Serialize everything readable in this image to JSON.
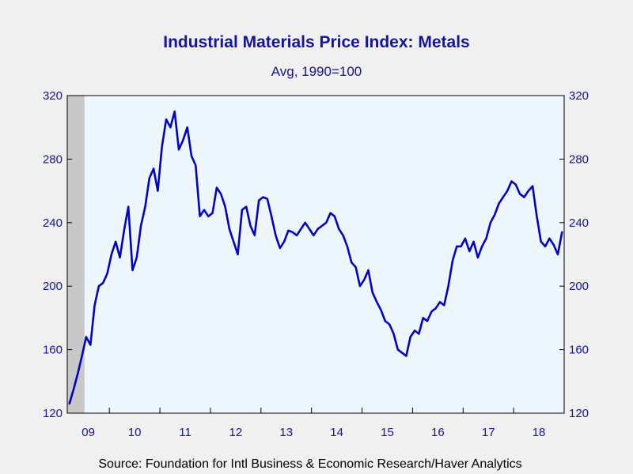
{
  "chart_data": {
    "type": "line",
    "title": "Industrial Materials Price Index: Metals",
    "subtitle": "Avg, 1990=100",
    "source": "Source:  Foundation for Intl Business & Economic Research/Haver Analytics",
    "ylim": [
      120,
      320
    ],
    "yticks": [
      120,
      160,
      200,
      240,
      280,
      320
    ],
    "x_range": [
      "2009-03",
      "2018-12"
    ],
    "x_tick_labels": [
      "09",
      "10",
      "11",
      "12",
      "13",
      "14",
      "15",
      "16",
      "17",
      "18"
    ],
    "recession_shading": {
      "start": "2009-03",
      "end": "2009-06"
    },
    "grid": false,
    "series": [
      {
        "color": "#0000c8",
        "points": [
          [
            "2009-03",
            126
          ],
          [
            "2009-04",
            135
          ],
          [
            "2009-05",
            145
          ],
          [
            "2009-06",
            156
          ],
          [
            "2009-07",
            168
          ],
          [
            "2009-08",
            163
          ],
          [
            "2009-09",
            188
          ],
          [
            "2009-10",
            200
          ],
          [
            "2009-11",
            202
          ],
          [
            "2009-12",
            208
          ],
          [
            "2010-01",
            220
          ],
          [
            "2010-02",
            228
          ],
          [
            "2010-03",
            218
          ],
          [
            "2010-04",
            235
          ],
          [
            "2010-05",
            250
          ],
          [
            "2010-06",
            210
          ],
          [
            "2010-07",
            218
          ],
          [
            "2010-08",
            238
          ],
          [
            "2010-09",
            250
          ],
          [
            "2010-10",
            268
          ],
          [
            "2010-11",
            274
          ],
          [
            "2010-12",
            260
          ],
          [
            "2011-01",
            288
          ],
          [
            "2011-02",
            305
          ],
          [
            "2011-03",
            300
          ],
          [
            "2011-04",
            310
          ],
          [
            "2011-05",
            286
          ],
          [
            "2011-06",
            292
          ],
          [
            "2011-07",
            300
          ],
          [
            "2011-08",
            282
          ],
          [
            "2011-09",
            276
          ],
          [
            "2011-10",
            244
          ],
          [
            "2011-11",
            248
          ],
          [
            "2011-12",
            244
          ],
          [
            "2012-01",
            246
          ],
          [
            "2012-02",
            262
          ],
          [
            "2012-03",
            258
          ],
          [
            "2012-04",
            250
          ],
          [
            "2012-05",
            236
          ],
          [
            "2012-06",
            228
          ],
          [
            "2012-07",
            220
          ],
          [
            "2012-08",
            248
          ],
          [
            "2012-09",
            250
          ],
          [
            "2012-10",
            238
          ],
          [
            "2012-11",
            232
          ],
          [
            "2012-12",
            254
          ],
          [
            "2013-01",
            256
          ],
          [
            "2013-02",
            255
          ],
          [
            "2013-03",
            244
          ],
          [
            "2013-04",
            232
          ],
          [
            "2013-05",
            224
          ],
          [
            "2013-06",
            228
          ],
          [
            "2013-07",
            235
          ],
          [
            "2013-08",
            234
          ],
          [
            "2013-09",
            232
          ],
          [
            "2013-10",
            236
          ],
          [
            "2013-11",
            240
          ],
          [
            "2013-12",
            236
          ],
          [
            "2014-01",
            232
          ],
          [
            "2014-02",
            236
          ],
          [
            "2014-03",
            238
          ],
          [
            "2014-04",
            240
          ],
          [
            "2014-05",
            246
          ],
          [
            "2014-06",
            244
          ],
          [
            "2014-07",
            236
          ],
          [
            "2014-08",
            232
          ],
          [
            "2014-09",
            225
          ],
          [
            "2014-10",
            215
          ],
          [
            "2014-11",
            212
          ],
          [
            "2014-12",
            200
          ],
          [
            "2015-01",
            204
          ],
          [
            "2015-02",
            210
          ],
          [
            "2015-03",
            196
          ],
          [
            "2015-04",
            190
          ],
          [
            "2015-05",
            185
          ],
          [
            "2015-06",
            178
          ],
          [
            "2015-07",
            176
          ],
          [
            "2015-08",
            170
          ],
          [
            "2015-09",
            160
          ],
          [
            "2015-10",
            158
          ],
          [
            "2015-11",
            156
          ],
          [
            "2015-12",
            168
          ],
          [
            "2016-01",
            172
          ],
          [
            "2016-02",
            170
          ],
          [
            "2016-03",
            180
          ],
          [
            "2016-04",
            178
          ],
          [
            "2016-05",
            184
          ],
          [
            "2016-06",
            186
          ],
          [
            "2016-07",
            190
          ],
          [
            "2016-08",
            188
          ],
          [
            "2016-09",
            200
          ],
          [
            "2016-10",
            216
          ],
          [
            "2016-11",
            225
          ],
          [
            "2016-12",
            225
          ],
          [
            "2017-01",
            230
          ],
          [
            "2017-02",
            222
          ],
          [
            "2017-03",
            228
          ],
          [
            "2017-04",
            218
          ],
          [
            "2017-05",
            225
          ],
          [
            "2017-06",
            230
          ],
          [
            "2017-07",
            240
          ],
          [
            "2017-08",
            245
          ],
          [
            "2017-09",
            252
          ],
          [
            "2017-10",
            256
          ],
          [
            "2017-11",
            260
          ],
          [
            "2017-12",
            266
          ],
          [
            "2018-01",
            264
          ],
          [
            "2018-02",
            258
          ],
          [
            "2018-03",
            256
          ],
          [
            "2018-04",
            260
          ],
          [
            "2018-05",
            263
          ],
          [
            "2018-06",
            244
          ],
          [
            "2018-07",
            228
          ],
          [
            "2018-08",
            225
          ],
          [
            "2018-09",
            230
          ],
          [
            "2018-10",
            226
          ],
          [
            "2018-11",
            220
          ],
          [
            "2018-12",
            234
          ]
        ]
      }
    ]
  }
}
